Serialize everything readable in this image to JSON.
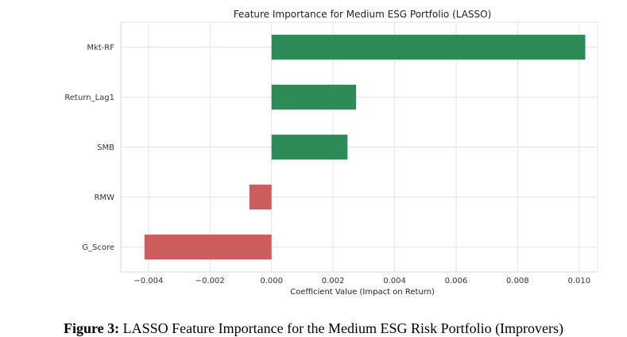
{
  "chart_data": {
    "type": "bar",
    "orientation": "horizontal",
    "title": "Feature Importance for Medium ESG Portfolio (LASSO)",
    "xlabel": "Coefficient Value (Impact on Return)",
    "ylabel": "",
    "categories": [
      "Mkt-RF",
      "Return_Lag1",
      "SMB",
      "RMW",
      "G_Score"
    ],
    "values": [
      0.0102,
      0.00275,
      0.00247,
      -0.00072,
      -0.00413
    ],
    "xlim": [
      -0.0049,
      0.0106
    ],
    "xticks": [
      -0.004,
      -0.002,
      0.0,
      0.002,
      0.004,
      0.006,
      0.008,
      0.01
    ],
    "xtick_labels": [
      "−0.004",
      "−0.002",
      "0.000",
      "0.002",
      "0.004",
      "0.006",
      "0.008",
      "0.010"
    ],
    "grid": true,
    "colors": {
      "positive": "#2e8b57",
      "negative": "#cd5c5c"
    }
  },
  "caption": {
    "label": "Figure 3:",
    "text": " LASSO Feature Importance for the Medium ESG Risk Portfolio (Improvers)"
  }
}
